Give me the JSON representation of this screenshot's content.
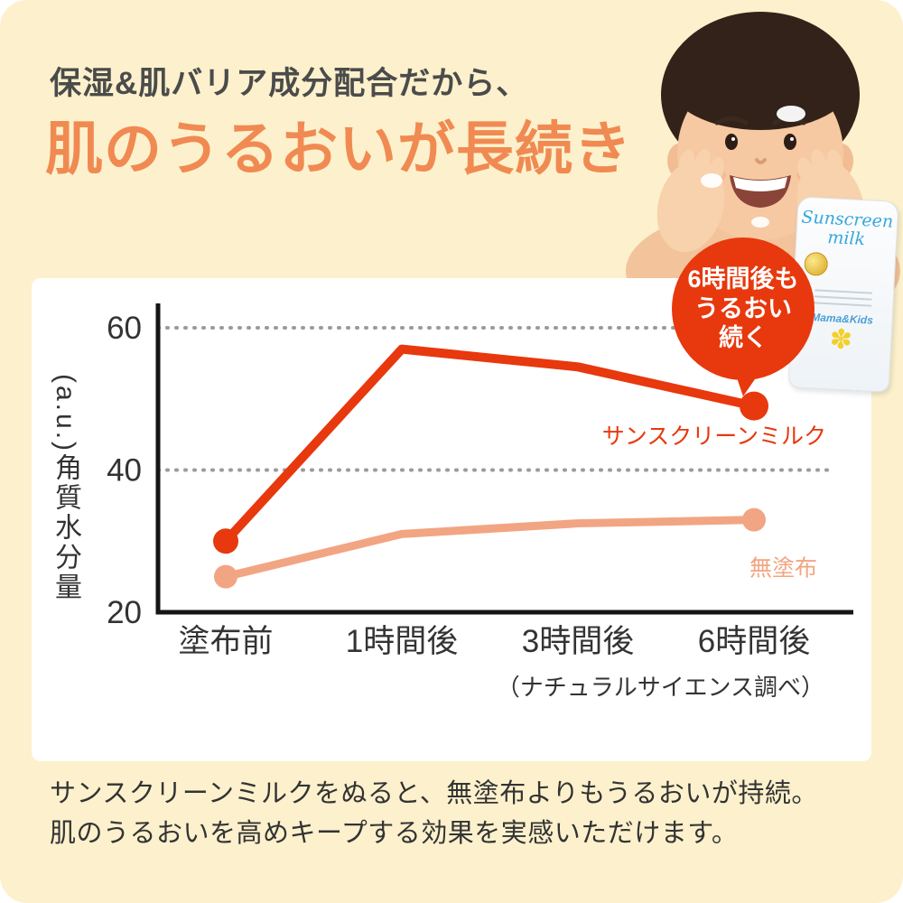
{
  "page": {
    "background_color": "#fcf1cc",
    "panel_color": "#ffffff"
  },
  "header": {
    "subtitle": "保湿&肌バリア成分配合だから、",
    "subtitle_color": "#4b4b4b",
    "title": "肌のうるおいが長続き",
    "title_color": "#f08a52"
  },
  "badge": {
    "line1": "6時間後も",
    "line2": "うるおい",
    "line3": "続く",
    "color": "#e8380d"
  },
  "product": {
    "brand_line1": "Sunscreen",
    "brand_line2": "milk",
    "logo": "Mama&Kids",
    "flower_icon": "✽"
  },
  "chart_data": {
    "type": "line",
    "categories": [
      "塗布前",
      "1時間後",
      "3時間後",
      "6時間後"
    ],
    "series": [
      {
        "name": "サンスクリーンミルク",
        "color": "#e8380d",
        "values": [
          30,
          57,
          54.5,
          49
        ]
      },
      {
        "name": "無塗布",
        "color": "#f2a582",
        "values": [
          25,
          31,
          32.5,
          33
        ]
      }
    ],
    "ylabel_main": "角質水分量",
    "ylabel_unit": "(a.u.)",
    "yticks": [
      20,
      40,
      60
    ],
    "ylim": [
      20,
      60
    ],
    "grid": "horizontal dotted lines at 40 and 60",
    "legend_position": "inline labels at right of lines",
    "source_note": "（ナチュラルサイエンス調べ）"
  },
  "footer": {
    "line1": "サンスクリーンミルクをぬると、無塗布よりもうるおいが持続。",
    "line2": "肌のうるおいを高めキープする効果を実感いただけます。"
  }
}
